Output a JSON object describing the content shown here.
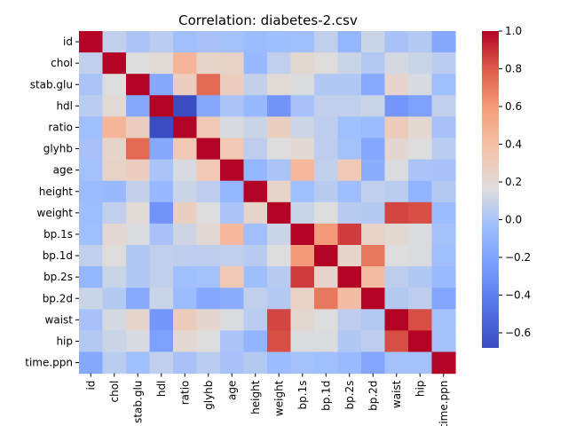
{
  "chart_data": {
    "type": "heatmap",
    "title": "Correlation: diabetes-2.csv",
    "xlabel": "",
    "ylabel": "",
    "labels": [
      "id",
      "chol",
      "stab.glu",
      "hdl",
      "ratio",
      "glyhb",
      "age",
      "height",
      "weight",
      "bp.1s",
      "bp.1d",
      "bp.2s",
      "bp.2d",
      "waist",
      "hip",
      "time.ppn"
    ],
    "colormap": "coolwarm",
    "vmin": -0.68,
    "vmax": 1.0,
    "colorbar_ticks": [
      "-0.6",
      "-0.4",
      "-0.2",
      "0.0",
      "0.2",
      "0.4",
      "0.6",
      "0.8",
      "1.0"
    ],
    "matrix": [
      [
        1.0,
        0.07,
        0.0,
        0.05,
        -0.03,
        -0.01,
        -0.02,
        -0.05,
        -0.04,
        -0.03,
        0.07,
        -0.09,
        0.1,
        -0.01,
        0.03,
        -0.17
      ],
      [
        0.07,
        1.0,
        0.16,
        0.19,
        0.46,
        0.24,
        0.25,
        -0.07,
        0.07,
        0.21,
        0.17,
        0.1,
        0.03,
        0.13,
        0.1,
        0.05
      ],
      [
        0.0,
        0.16,
        1.0,
        -0.17,
        0.29,
        0.75,
        0.29,
        0.08,
        0.19,
        0.15,
        0.02,
        0.02,
        -0.16,
        0.23,
        0.14,
        -0.03
      ],
      [
        0.05,
        0.19,
        -0.17,
        1.0,
        -0.68,
        -0.17,
        0.0,
        -0.07,
        -0.29,
        -0.01,
        0.07,
        0.07,
        0.1,
        -0.28,
        -0.22,
        0.07
      ],
      [
        -0.03,
        0.46,
        0.29,
        -0.68,
        1.0,
        0.33,
        0.14,
        0.1,
        0.28,
        0.11,
        0.06,
        -0.03,
        -0.05,
        0.31,
        0.21,
        -0.01
      ],
      [
        -0.01,
        0.24,
        0.75,
        -0.17,
        0.33,
        1.0,
        0.34,
        0.06,
        0.16,
        0.2,
        0.06,
        -0.02,
        -0.18,
        0.22,
        0.16,
        0.05
      ],
      [
        -0.02,
        0.25,
        0.29,
        0.0,
        0.14,
        0.34,
        1.0,
        -0.09,
        0.0,
        0.44,
        0.07,
        0.33,
        -0.14,
        0.15,
        0.0,
        -0.01
      ],
      [
        -0.05,
        -0.07,
        0.08,
        -0.07,
        0.1,
        0.06,
        -0.09,
        1.0,
        0.24,
        -0.03,
        0.04,
        -0.04,
        0.07,
        0.05,
        -0.1,
        0.03
      ],
      [
        -0.04,
        0.07,
        0.19,
        -0.29,
        0.28,
        0.16,
        0.0,
        0.24,
        1.0,
        0.1,
        0.16,
        0.04,
        0.03,
        0.85,
        0.83,
        -0.05
      ],
      [
        -0.03,
        0.21,
        0.15,
        -0.01,
        0.11,
        0.2,
        0.44,
        -0.03,
        0.1,
        1.0,
        0.6,
        0.87,
        0.26,
        0.21,
        0.15,
        -0.02
      ],
      [
        0.07,
        0.17,
        0.02,
        0.07,
        0.06,
        0.06,
        0.07,
        0.04,
        0.16,
        0.6,
        1.0,
        0.24,
        0.71,
        0.16,
        0.15,
        -0.03
      ],
      [
        -0.09,
        0.1,
        0.02,
        0.07,
        -0.03,
        -0.02,
        0.33,
        -0.04,
        0.04,
        0.87,
        0.24,
        1.0,
        0.41,
        0.06,
        0.02,
        -0.06
      ],
      [
        0.1,
        0.03,
        -0.16,
        0.1,
        -0.05,
        -0.18,
        -0.14,
        0.07,
        0.03,
        0.26,
        0.71,
        0.41,
        1.0,
        0.03,
        0.06,
        -0.19
      ],
      [
        -0.01,
        0.13,
        0.23,
        -0.28,
        0.31,
        0.22,
        0.15,
        0.05,
        0.85,
        0.21,
        0.16,
        0.06,
        0.03,
        1.0,
        0.83,
        -0.02
      ],
      [
        0.03,
        0.1,
        0.14,
        -0.22,
        0.21,
        0.16,
        0.0,
        -0.1,
        0.83,
        0.15,
        0.15,
        0.02,
        0.06,
        0.83,
        1.0,
        -0.02
      ],
      [
        -0.17,
        0.05,
        -0.03,
        0.07,
        -0.01,
        0.05,
        -0.01,
        0.03,
        -0.05,
        -0.02,
        -0.03,
        -0.06,
        -0.19,
        -0.02,
        -0.02,
        1.0
      ]
    ]
  }
}
